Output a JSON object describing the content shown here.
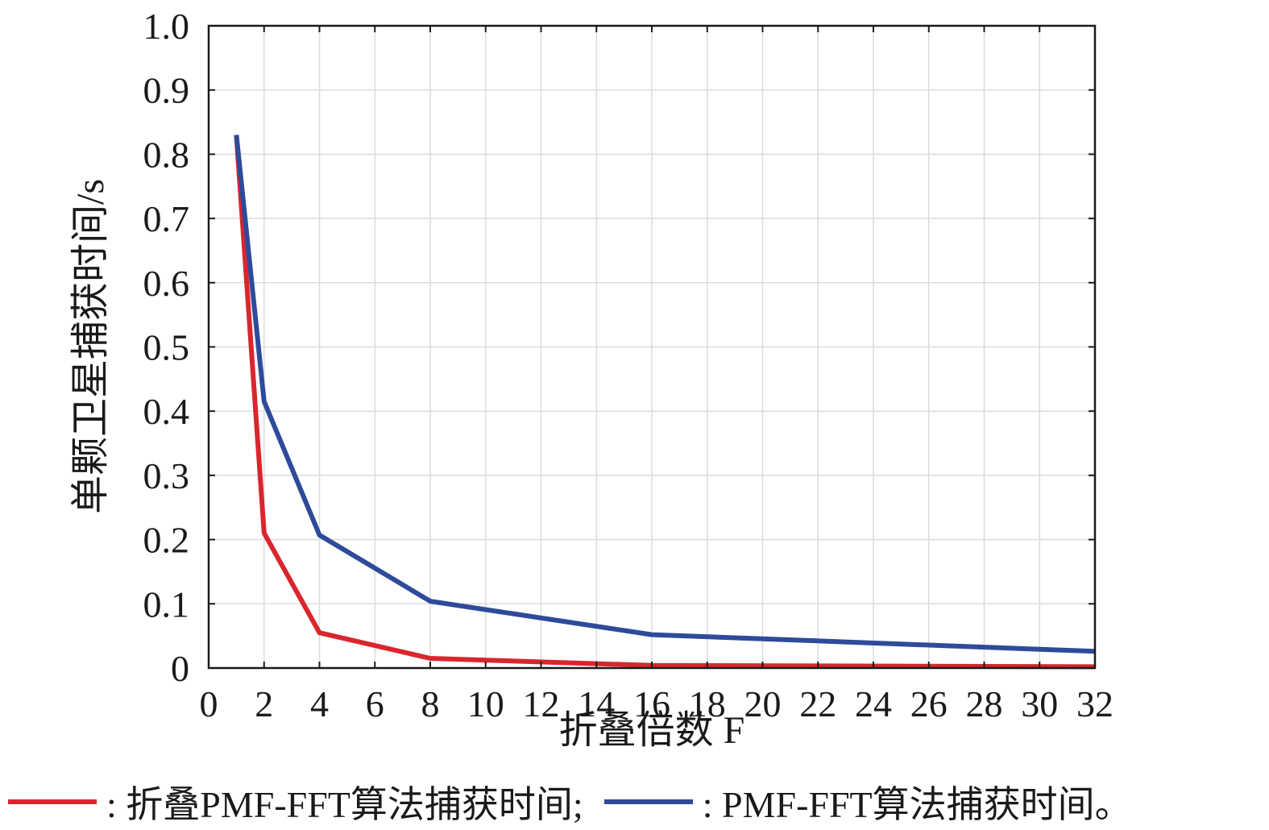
{
  "chart_data": {
    "type": "line",
    "title": "",
    "xlabel": "折叠倍数 F",
    "ylabel": "单颗卫星捕获时间/s",
    "xlim": [
      0,
      32
    ],
    "ylim": [
      0,
      1.0
    ],
    "x_ticks": [
      "0",
      "2",
      "4",
      "6",
      "8",
      "10",
      "12",
      "14",
      "16",
      "18",
      "20",
      "22",
      "24",
      "26",
      "28",
      "30",
      "32"
    ],
    "y_ticks": [
      "0",
      "0.1",
      "0.2",
      "0.3",
      "0.4",
      "0.5",
      "0.6",
      "0.7",
      "0.8",
      "0.9",
      "1.0"
    ],
    "grid": true,
    "legend_position": "bottom",
    "series": [
      {
        "name": "折叠PMF-FFT算法捕获时间",
        "legend_text": ": 折叠PMF-FFT算法捕获时间;",
        "color": "#d9262e",
        "x": [
          1,
          2,
          4,
          8,
          16,
          32
        ],
        "y": [
          0.83,
          0.21,
          0.055,
          0.015,
          0.004,
          0.002
        ]
      },
      {
        "name": "PMF-FFT算法捕获时间",
        "legend_text": ": PMF-FFT算法捕获时间。",
        "color": "#2e4b9a",
        "x": [
          1,
          2,
          4,
          8,
          16,
          32
        ],
        "y": [
          0.83,
          0.415,
          0.207,
          0.104,
          0.052,
          0.026
        ]
      }
    ]
  }
}
